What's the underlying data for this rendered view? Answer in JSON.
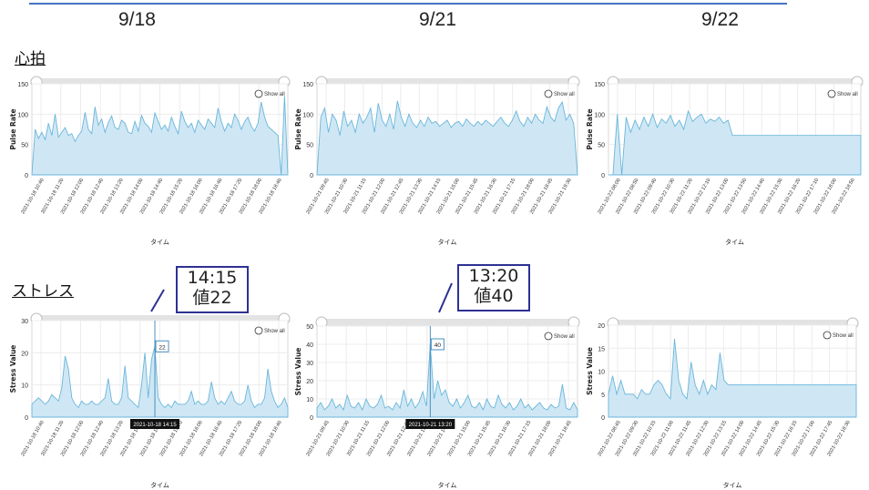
{
  "dates": [
    "9/18",
    "9/21",
    "9/22"
  ],
  "sections": {
    "heart": "心拍",
    "stress": "ストレス"
  },
  "callouts": [
    {
      "time": "14:15",
      "value": "値22"
    },
    {
      "time": "13:20",
      "value": "値40"
    }
  ],
  "colors": {
    "fill": "#cfe7f4",
    "stroke": "#69b6dc",
    "scrollbar": "#e3e3e3",
    "callout_border": "#2e3192",
    "topline": "#4472c4"
  },
  "chart_data": [
    {
      "type": "area",
      "panel": "pulse-1",
      "ylabel": "Pulse Rate",
      "xlabel": "タイム",
      "ylim": [
        0,
        150
      ],
      "y_ticks": [
        "0",
        "50",
        "100",
        "150"
      ],
      "show_all": "Show all",
      "x_ticks": [
        "2021-10-18 10:40",
        "2021-10-18 11:20",
        "2021-10-18 12:00",
        "2021-10-18 12:40",
        "2021-10-18 13:20",
        "2021-10-18 14:00",
        "2021-10-18 14:40",
        "2021-10-18 15:20",
        "2021-10-18 16:00",
        "2021-10-18 16:40",
        "2021-10-18 17:20",
        "2021-10-18 18:00",
        "2021-10-18 18:40"
      ],
      "values": [
        0,
        75,
        60,
        70,
        58,
        85,
        65,
        100,
        62,
        70,
        78,
        65,
        68,
        55,
        65,
        72,
        103,
        75,
        68,
        112,
        82,
        92,
        70,
        86,
        97,
        78,
        75,
        90,
        85,
        70,
        68,
        88,
        72,
        98,
        85,
        80,
        70,
        102,
        88,
        75,
        82,
        72,
        95,
        80,
        68,
        105,
        88,
        78,
        85,
        70,
        90,
        82,
        75,
        92,
        85,
        78,
        110,
        88,
        72,
        85,
        78,
        100,
        90,
        75,
        88,
        95,
        80,
        72,
        85,
        120,
        95,
        80,
        75,
        70,
        65,
        0,
        130,
        0
      ]
    },
    {
      "type": "area",
      "panel": "pulse-2",
      "ylabel": "Pulse Rate",
      "xlabel": "タイム",
      "ylim": [
        0,
        150
      ],
      "y_ticks": [
        "0",
        "50",
        "100",
        "150"
      ],
      "show_all": "Show all",
      "x_ticks": [
        "2021-10-21 09:45",
        "2021-10-21 10:30",
        "2021-10-21 11:15",
        "2021-10-21 12:00",
        "2021-10-21 12:45",
        "2021-10-21 13:30",
        "2021-10-21 14:15",
        "2021-10-21 15:00",
        "2021-10-21 15:45",
        "2021-10-21 16:30",
        "2021-10-21 17:15",
        "2021-10-21 18:00",
        "2021-10-21 18:45",
        "2021-10-21 19:30"
      ],
      "values": [
        0,
        95,
        110,
        70,
        100,
        90,
        65,
        105,
        80,
        90,
        70,
        100,
        85,
        95,
        110,
        70,
        118,
        90,
        80,
        100,
        75,
        122,
        95,
        80,
        100,
        85,
        78,
        90,
        80,
        95,
        85,
        88,
        80,
        85,
        90,
        78,
        85,
        88,
        80,
        92,
        85,
        80,
        88,
        82,
        90,
        85,
        80,
        88,
        95,
        85,
        80,
        90,
        105,
        88,
        80,
        95,
        85,
        100,
        90,
        85,
        112,
        95,
        88,
        110,
        120,
        90,
        100,
        85,
        0
      ]
    },
    {
      "type": "area",
      "panel": "pulse-3",
      "ylabel": "Pulse Rate",
      "xlabel": "タイム",
      "ylim": [
        0,
        150
      ],
      "y_ticks": [
        "0",
        "50",
        "100",
        "150"
      ],
      "show_all": "Show all",
      "x_ticks": [
        "2021-10-22 08:00",
        "2021-10-22 08:50",
        "2021-10-22 09:40",
        "2021-10-22 10:30",
        "2021-10-22 11:20",
        "2021-10-22 12:10",
        "2021-10-22 13:00",
        "2021-10-22 13:50",
        "2021-10-22 14:40",
        "2021-10-22 15:30",
        "2021-10-22 16:20",
        "2021-10-22 17:10",
        "2021-10-22 18:00",
        "2021-10-22 18:50"
      ],
      "values": [
        0,
        0,
        100,
        0,
        95,
        70,
        90,
        75,
        95,
        80,
        100,
        78,
        92,
        85,
        98,
        80,
        90,
        75,
        105,
        88,
        95,
        100,
        85,
        92,
        88,
        95,
        85,
        90,
        65,
        65,
        65,
        65,
        65,
        65,
        65,
        65,
        65,
        65,
        65,
        65,
        65,
        65,
        65,
        65,
        65,
        65,
        65,
        65,
        65,
        65,
        65,
        65,
        65,
        65,
        65,
        65,
        65,
        65
      ]
    },
    {
      "type": "area",
      "panel": "stress-1",
      "ylabel": "Stress Value",
      "xlabel": "タイム",
      "ylim": [
        0,
        30
      ],
      "y_ticks": [
        "0",
        "10",
        "20",
        "30"
      ],
      "show_all": "Show all",
      "tooltip": {
        "label": "2021-10-18 14:15",
        "value": "22"
      },
      "x_ticks": [
        "2021-10-18 10:40",
        "2021-10-18 11:20",
        "2021-10-18 12:00",
        "2021-10-18 12:40",
        "2021-10-18 13:20",
        "2021-10-18 14:00",
        "2021-10-18 14:40",
        "2021-10-18 15:20",
        "2021-10-18 16:00",
        "2021-10-18 16:40",
        "2021-10-18 17:20",
        "2021-10-18 18:00",
        "2021-10-18 18:40"
      ],
      "values": [
        4,
        5,
        6,
        5,
        4,
        5,
        7,
        6,
        5,
        9,
        19,
        15,
        6,
        4,
        3,
        5,
        4,
        4,
        5,
        4,
        4,
        5,
        6,
        12,
        5,
        4,
        4,
        6,
        16,
        6,
        5,
        4,
        3,
        10,
        20,
        6,
        18,
        22,
        6,
        4,
        3,
        4,
        3,
        5,
        4,
        4,
        4,
        5,
        8,
        4,
        5,
        4,
        4,
        5,
        11,
        6,
        4,
        5,
        4,
        6,
        8,
        5,
        4,
        4,
        5,
        10,
        5,
        3,
        4,
        4,
        6,
        15,
        8,
        5,
        3,
        4,
        6,
        3
      ]
    },
    {
      "type": "area",
      "panel": "stress-2",
      "ylabel": "Stress Value",
      "xlabel": "タイム",
      "ylim": [
        0,
        50
      ],
      "y_ticks": [
        "0",
        "10",
        "20",
        "30",
        "40",
        "50"
      ],
      "show_all": "Show all",
      "tooltip": {
        "label": "2021-10-21 13:20",
        "value": "40"
      },
      "x_ticks": [
        "2021-10-21 09:45",
        "2021-10-21 10:30",
        "2021-10-21 11:15",
        "2021-10-21 12:00",
        "2021-10-21 12:45",
        "2021-10-21 13:30",
        "2021-10-21 14:15",
        "2021-10-21 15:00",
        "2021-10-21 15:45",
        "2021-10-21 16:30",
        "2021-10-21 17:15",
        "2021-10-21 18:00",
        "2021-10-21 18:45"
      ],
      "values": [
        5,
        8,
        4,
        6,
        10,
        5,
        7,
        4,
        12,
        6,
        5,
        8,
        4,
        10,
        6,
        5,
        7,
        12,
        5,
        6,
        4,
        8,
        5,
        15,
        6,
        10,
        5,
        8,
        14,
        6,
        40,
        10,
        20,
        12,
        15,
        8,
        6,
        10,
        5,
        8,
        12,
        6,
        5,
        8,
        4,
        10,
        6,
        5,
        12,
        7,
        5,
        8,
        4,
        6,
        10,
        5,
        7,
        4,
        6,
        8,
        5,
        4,
        7,
        5,
        6,
        18,
        5,
        4,
        8,
        4
      ]
    },
    {
      "type": "area",
      "panel": "stress-3",
      "ylabel": "Stress Value",
      "xlabel": "タイム",
      "ylim": [
        0,
        20
      ],
      "y_ticks": [
        "0",
        "5",
        "10",
        "15",
        "20"
      ],
      "show_all": "Show all",
      "x_ticks": [
        "2021-10-22 08:45",
        "2021-10-22 09:30",
        "2021-10-22 10:15",
        "2021-10-22 11:00",
        "2021-10-22 11:45",
        "2021-10-22 12:30",
        "2021-10-22 13:15",
        "2021-10-22 14:00",
        "2021-10-22 14:45",
        "2021-10-22 15:30",
        "2021-10-22 16:15",
        "2021-10-22 17:00",
        "2021-10-22 17:45",
        "2021-10-22 18:30"
      ],
      "values": [
        5,
        9,
        5,
        8,
        5,
        5,
        5,
        4,
        6,
        5,
        5,
        7,
        8,
        7,
        5,
        4,
        17,
        8,
        5,
        4,
        12,
        7,
        5,
        8,
        5,
        7,
        6,
        14,
        8,
        7,
        7,
        7,
        7,
        7,
        7,
        7,
        7,
        7,
        7,
        7,
        7,
        7,
        7,
        7,
        7,
        7,
        7,
        7,
        7,
        7,
        7,
        7,
        7,
        7,
        7,
        7,
        7,
        7,
        7,
        7,
        7
      ]
    }
  ]
}
